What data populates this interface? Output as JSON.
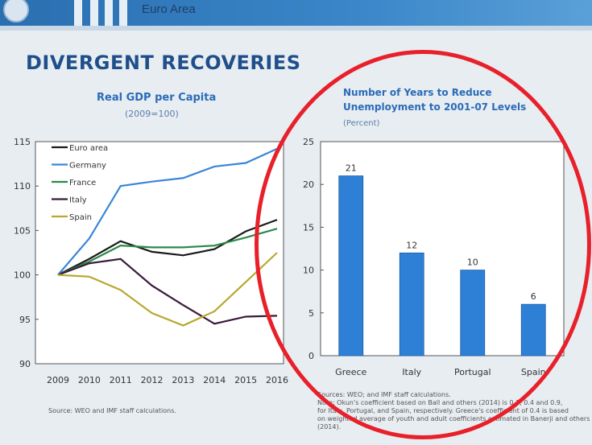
{
  "header": {
    "title": "Euro Area"
  },
  "page_title": "DIVERGENT RECOVERIES",
  "left_chart": {
    "title": "Real GDP per Capita",
    "subtitle": "(2009=100)",
    "source": "Source: WEO and IMF staff calculations."
  },
  "right_chart": {
    "title_line1": "Number of Years to Reduce",
    "title_line2": "Unemployment to 2001-07 Levels",
    "subtitle": "(Percent)",
    "source_lines": [
      "Sources: WEO; and IMF staff calculations.",
      "Note: Okun's coefficient based on Ball and others (2014) is 0.3, 0.4 and 0.9,",
      "for Italy, Portugal, and Spain, respectively. Greece's coefficient of 0.4 is based",
      "on weighted average of youth and adult coefficients estimated in Banerji and others",
      "(2014)."
    ]
  },
  "colors": {
    "Euro area": "#1a1a1a",
    "Germany": "#3a86d8",
    "France": "#2a8a4a",
    "Italy": "#3a1a3a",
    "Spain": "#b8a830",
    "bar": "#2e7fd6",
    "annotation": "#e8202a"
  },
  "chart_data": [
    {
      "type": "line",
      "title": "Real GDP per Capita",
      "subtitle": "(2009=100)",
      "x": [
        "2009",
        "2010",
        "2011",
        "2012",
        "2013",
        "2014",
        "2015",
        "2016"
      ],
      "ylim": [
        90,
        115
      ],
      "yticks": [
        90,
        95,
        100,
        105,
        110,
        115
      ],
      "legend": "top-left",
      "series": [
        {
          "name": "Euro area",
          "values": [
            100,
            101.8,
            103.8,
            102.6,
            102.2,
            102.9,
            104.9,
            106.2
          ]
        },
        {
          "name": "Germany",
          "values": [
            100,
            104.1,
            110.0,
            110.5,
            110.9,
            112.2,
            112.6,
            114.2
          ]
        },
        {
          "name": "France",
          "values": [
            100,
            101.5,
            103.3,
            103.1,
            103.1,
            103.3,
            104.2,
            105.2
          ]
        },
        {
          "name": "Italy",
          "values": [
            100,
            101.3,
            101.8,
            98.8,
            96.6,
            94.5,
            95.3,
            95.4
          ]
        },
        {
          "name": "Spain",
          "values": [
            100,
            99.8,
            98.3,
            95.7,
            94.3,
            95.9,
            99.2,
            102.5
          ]
        }
      ]
    },
    {
      "type": "bar",
      "title": "Number of Years to Reduce Unemployment to 2001-07 Levels",
      "subtitle": "(Percent)",
      "categories": [
        "Greece",
        "Italy",
        "Portugal",
        "Spain"
      ],
      "values": [
        21,
        12,
        10,
        6
      ],
      "ylim": [
        0,
        25
      ],
      "yticks": [
        0,
        5,
        10,
        15,
        20,
        25
      ]
    }
  ]
}
